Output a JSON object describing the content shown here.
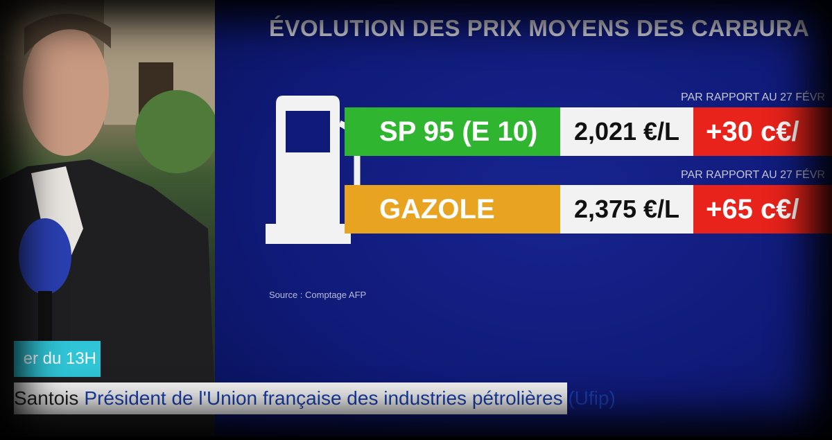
{
  "graphic": {
    "title": "ÉVOLUTION DES PRIX MOYENS DES CARBURA",
    "rows": [
      {
        "note": "PAR RAPPORT AU 27 FÉVR",
        "fuel": "SP 95 (E 10)",
        "price": "2,021 €/L",
        "change": "+30 c€/"
      },
      {
        "note": "PAR RAPPORT AU 27 FÉVR",
        "fuel": "GAZOLE",
        "price": "2,375 €/L",
        "change": "+65 c€/"
      }
    ],
    "source": "Source : Comptage AFP"
  },
  "lower_third": {
    "tag": "er du 13H",
    "name": "Santois",
    "role": "Président de l'Union française des industries pétrolières (Ufip)"
  }
}
